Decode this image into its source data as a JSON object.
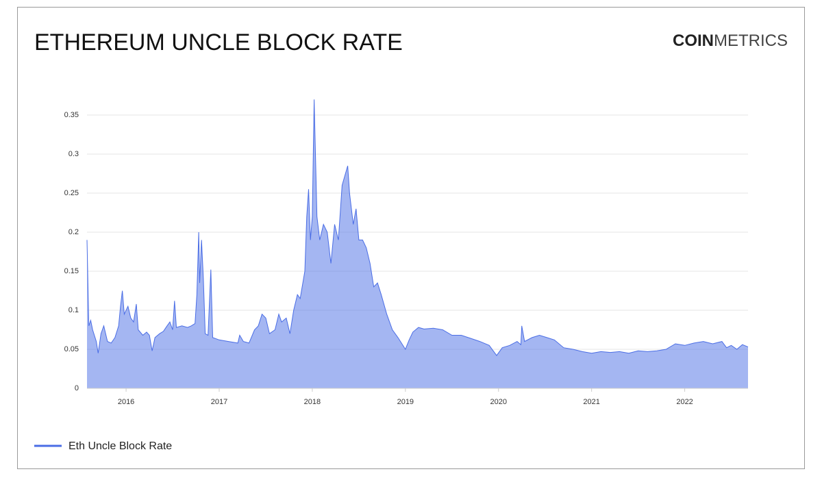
{
  "logo": {
    "bold": "COIN",
    "light": "METRICS"
  },
  "chart_data": {
    "type": "area",
    "title": "ETHEREUM UNCLE BLOCK RATE",
    "x": [
      2015.58,
      2015.6,
      2015.62,
      2015.64,
      2015.68,
      2015.7,
      2015.73,
      2015.76,
      2015.8,
      2015.84,
      2015.88,
      2015.92,
      2015.94,
      2015.96,
      2015.98,
      2016.02,
      2016.05,
      2016.08,
      2016.11,
      2016.13,
      2016.18,
      2016.22,
      2016.25,
      2016.28,
      2016.31,
      2016.36,
      2016.4,
      2016.44,
      2016.47,
      2016.5,
      2016.52,
      2016.54,
      2016.6,
      2016.66,
      2016.7,
      2016.74,
      2016.76,
      2016.78,
      2016.79,
      2016.81,
      2016.83,
      2016.85,
      2016.88,
      2016.91,
      2016.93,
      2017.0,
      2017.1,
      2017.2,
      2017.22,
      2017.26,
      2017.32,
      2017.38,
      2017.42,
      2017.46,
      2017.5,
      2017.54,
      2017.6,
      2017.64,
      2017.67,
      2017.72,
      2017.76,
      2017.8,
      2017.84,
      2017.87,
      2017.92,
      2017.94,
      2017.96,
      2017.98,
      2018.0,
      2018.02,
      2018.05,
      2018.08,
      2018.12,
      2018.16,
      2018.2,
      2018.24,
      2018.28,
      2018.32,
      2018.38,
      2018.4,
      2018.44,
      2018.47,
      2018.5,
      2018.54,
      2018.58,
      2018.62,
      2018.66,
      2018.7,
      2018.74,
      2018.8,
      2018.86,
      2018.92,
      2019.0,
      2019.04,
      2019.08,
      2019.14,
      2019.2,
      2019.3,
      2019.4,
      2019.5,
      2019.6,
      2019.7,
      2019.8,
      2019.9,
      2019.98,
      2020.04,
      2020.12,
      2020.2,
      2020.24,
      2020.25,
      2020.28,
      2020.36,
      2020.44,
      2020.52,
      2020.6,
      2020.7,
      2020.8,
      2020.9,
      2021.0,
      2021.1,
      2021.2,
      2021.3,
      2021.4,
      2021.5,
      2021.6,
      2021.7,
      2021.8,
      2021.9,
      2022.0,
      2022.1,
      2022.2,
      2022.3,
      2022.4,
      2022.45,
      2022.5,
      2022.56,
      2022.62,
      2022.68
    ],
    "series": [
      {
        "name": "Eth Uncle Block Rate",
        "color": "#4a6de5",
        "values": [
          0.19,
          0.08,
          0.087,
          0.075,
          0.06,
          0.045,
          0.07,
          0.08,
          0.06,
          0.058,
          0.065,
          0.08,
          0.105,
          0.125,
          0.095,
          0.105,
          0.09,
          0.085,
          0.108,
          0.075,
          0.068,
          0.072,
          0.068,
          0.048,
          0.065,
          0.07,
          0.073,
          0.08,
          0.085,
          0.075,
          0.112,
          0.078,
          0.08,
          0.078,
          0.08,
          0.083,
          0.12,
          0.2,
          0.135,
          0.19,
          0.14,
          0.07,
          0.068,
          0.152,
          0.065,
          0.062,
          0.06,
          0.058,
          0.068,
          0.06,
          0.058,
          0.075,
          0.08,
          0.095,
          0.09,
          0.07,
          0.075,
          0.095,
          0.085,
          0.09,
          0.07,
          0.1,
          0.12,
          0.115,
          0.15,
          0.22,
          0.255,
          0.19,
          0.22,
          0.37,
          0.22,
          0.19,
          0.21,
          0.2,
          0.16,
          0.21,
          0.19,
          0.26,
          0.285,
          0.25,
          0.21,
          0.23,
          0.19,
          0.19,
          0.18,
          0.16,
          0.13,
          0.135,
          0.12,
          0.095,
          0.075,
          0.065,
          0.05,
          0.062,
          0.072,
          0.078,
          0.076,
          0.077,
          0.075,
          0.068,
          0.068,
          0.064,
          0.06,
          0.055,
          0.042,
          0.052,
          0.055,
          0.06,
          0.056,
          0.08,
          0.06,
          0.065,
          0.068,
          0.065,
          0.062,
          0.052,
          0.05,
          0.047,
          0.045,
          0.047,
          0.046,
          0.047,
          0.045,
          0.048,
          0.047,
          0.048,
          0.05,
          0.057,
          0.055,
          0.058,
          0.06,
          0.057,
          0.06,
          0.052,
          0.055,
          0.05,
          0.056,
          0.053
        ]
      }
    ],
    "xlim": [
      2015.58,
      2022.68
    ],
    "xticks": [
      2016,
      2017,
      2018,
      2019,
      2020,
      2021,
      2022
    ],
    "ylim": [
      0,
      0.37
    ],
    "yticks": [
      0,
      0.05,
      0.1,
      0.15,
      0.2,
      0.25,
      0.3,
      0.35
    ],
    "grid": true
  }
}
